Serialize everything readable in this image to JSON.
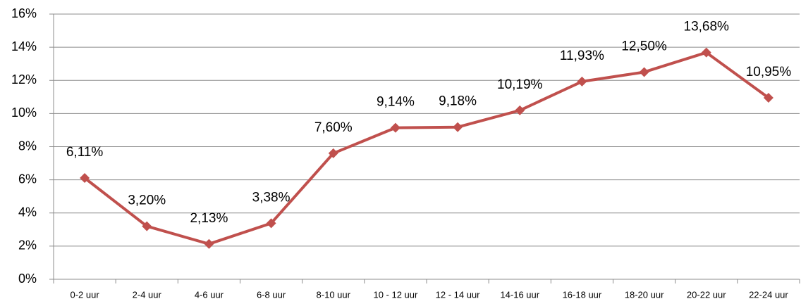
{
  "chart_data": {
    "type": "line",
    "categories": [
      "0-2 uur",
      "2-4 uur",
      "4-6 uur",
      "6-8 uur",
      "8-10 uur",
      "10 - 12 uur",
      "12 - 14 uur",
      "14-16 uur",
      "16-18 uur",
      "18-20 uur",
      "20-22 uur",
      "22-24 uur"
    ],
    "series": [
      {
        "color": "#c0504d",
        "values": [
          6.11,
          3.2,
          2.13,
          3.38,
          7.6,
          9.14,
          9.18,
          10.19,
          11.93,
          12.5,
          13.68,
          10.95
        ],
        "value_labels": [
          "6,11%",
          "3,20%",
          "2,13%",
          "3,38%",
          "7,60%",
          "9,14%",
          "9,18%",
          "10,19%",
          "11,93%",
          "12,50%",
          "13,68%",
          "10,95%"
        ]
      }
    ],
    "ylim": [
      0,
      16
    ],
    "yticks": [
      {
        "value": 0,
        "label": "0%"
      },
      {
        "value": 2,
        "label": "2%"
      },
      {
        "value": 4,
        "label": "4%"
      },
      {
        "value": 6,
        "label": "6%"
      },
      {
        "value": 8,
        "label": "8%"
      },
      {
        "value": 10,
        "label": "10%"
      },
      {
        "value": 12,
        "label": "12%"
      },
      {
        "value": 14,
        "label": "14%"
      },
      {
        "value": 16,
        "label": "16%"
      }
    ],
    "grid": true
  }
}
